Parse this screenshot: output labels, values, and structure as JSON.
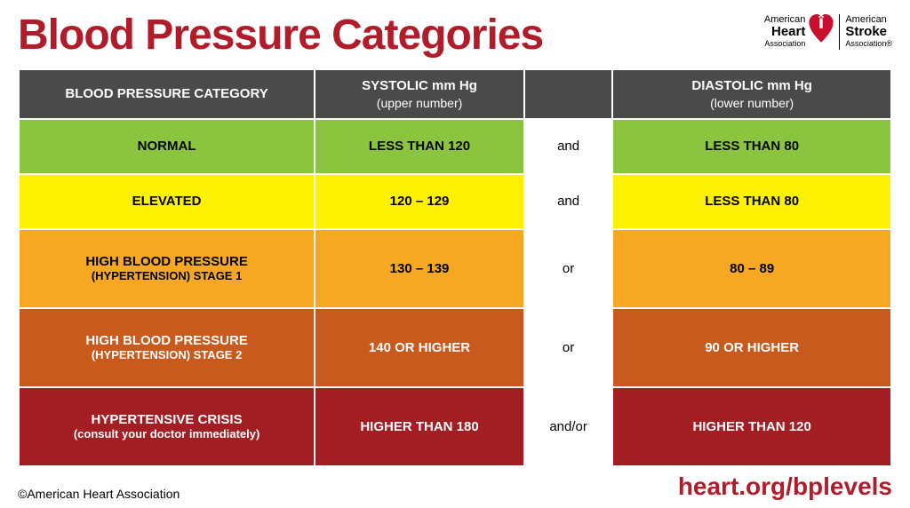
{
  "title": "Blood Pressure Categories",
  "title_color": "#b11c2b",
  "logos": {
    "heart": {
      "line1": "American",
      "line2": "Heart",
      "line3": "Association"
    },
    "stroke": {
      "line1": "American",
      "line2": "Stroke",
      "line3": "Association®"
    },
    "icon_color": "#c8102e"
  },
  "table": {
    "header": {
      "bg": "#4a4a4a",
      "fg": "#ffffff",
      "category": "BLOOD PRESSURE CATEGORY",
      "systolic": "SYSTOLIC mm Hg",
      "systolic_sub": "(upper number)",
      "conj": "",
      "diastolic": "DIASTOLIC mm Hg",
      "diastolic_sub": "(lower number)"
    },
    "conj_bg": "#ffffff",
    "conj_fg": "#000000",
    "rows": [
      {
        "bg": "#8bc53f",
        "fg": "#000000",
        "category": "NORMAL",
        "systolic": "LESS THAN 120",
        "conj": "and",
        "diastolic": "LESS THAN 80"
      },
      {
        "bg": "#fff200",
        "fg": "#000000",
        "category": "ELEVATED",
        "systolic": "120 – 129",
        "conj": "and",
        "diastolic": "LESS THAN 80"
      },
      {
        "bg": "#f7a823",
        "fg": "#000000",
        "category": "HIGH BLOOD PRESSURE",
        "category_sub": "(HYPERTENSION) STAGE 1",
        "systolic": "130 – 139",
        "conj": "or",
        "diastolic": "80 – 89"
      },
      {
        "bg": "#c85a1e",
        "fg": "#ffffff",
        "category": "HIGH BLOOD PRESSURE",
        "category_sub": "(HYPERTENSION) STAGE 2",
        "systolic": "140 OR HIGHER",
        "conj": "or",
        "diastolic": "90 OR HIGHER"
      },
      {
        "bg": "#a31e22",
        "fg": "#ffffff",
        "category": "HYPERTENSIVE CRISIS",
        "category_sub": "(consult your doctor immediately)",
        "systolic": "HIGHER THAN 180",
        "conj": "and/or",
        "diastolic": "HIGHER THAN 120"
      }
    ]
  },
  "footer": {
    "copyright": "©American Heart Association",
    "url": "heart.org/bplevels",
    "url_color": "#b11c2b"
  }
}
